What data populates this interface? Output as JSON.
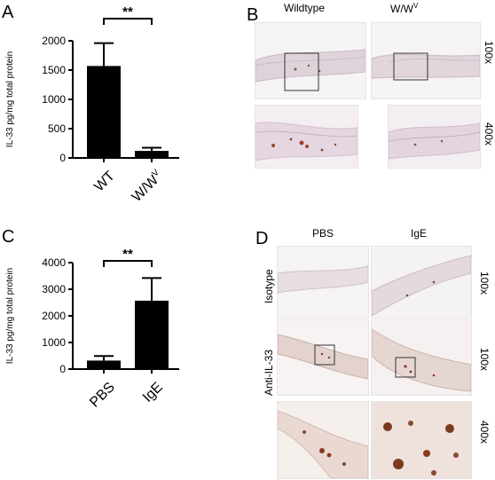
{
  "panels": {
    "A": {
      "letter": "A",
      "significance": "**"
    },
    "B": {
      "letter": "B",
      "col_labels": [
        "Wildtype",
        "W/W"
      ],
      "col_label_superscript": "V",
      "magnifications": [
        "100x",
        "400x"
      ]
    },
    "C": {
      "letter": "C",
      "significance": "**"
    },
    "D": {
      "letter": "D",
      "col_labels": [
        "PBS",
        "IgE"
      ],
      "row_labels": [
        "Isotype",
        "Anti-IL-33"
      ],
      "magnifications": [
        "100x",
        "100x",
        "400x"
      ]
    }
  },
  "chart_data": [
    {
      "panel": "A",
      "type": "bar",
      "categories": [
        "WT",
        "W/W"
      ],
      "category_superscript": [
        "",
        "V"
      ],
      "values": [
        1570,
        120
      ],
      "errors": [
        390,
        55
      ],
      "ylabel": "IL-33 pg/mg total protein",
      "ylim": [
        0,
        2000
      ],
      "yticks": [
        0,
        500,
        1000,
        1500,
        2000
      ],
      "bar_color": "#000000"
    },
    {
      "panel": "C",
      "type": "bar",
      "categories": [
        "PBS",
        "IgE"
      ],
      "values": [
        320,
        2570
      ],
      "errors": [
        170,
        850
      ],
      "ylabel": "IL-33 pg/mg total protein",
      "ylim": [
        0,
        4000
      ],
      "yticks": [
        0,
        1000,
        2000,
        3000,
        4000
      ],
      "bar_color": "#000000"
    }
  ],
  "colors": {
    "tissue_bg": "#f7f4f6",
    "tissue_band": "#dccfd6",
    "tissue_stain": "#9a5a3c",
    "dab_dark": "#7a3a1e",
    "box": "#333333"
  }
}
